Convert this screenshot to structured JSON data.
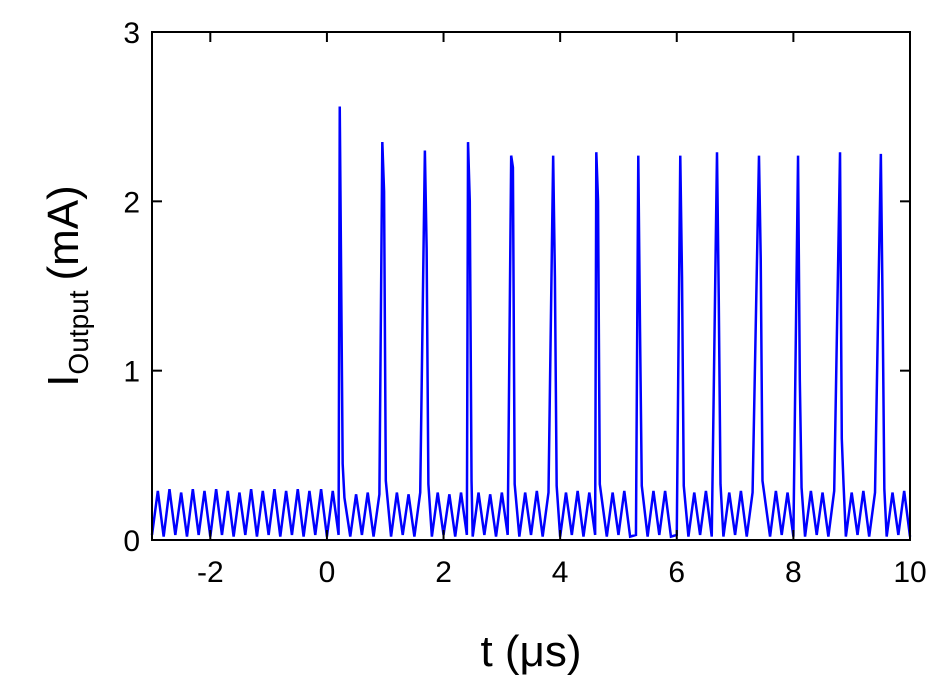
{
  "chart_data": {
    "type": "line",
    "x_label": "t (μs)",
    "y_label": {
      "main": "I",
      "sub": "Output",
      "unit": "(mA)"
    },
    "color": "#0000ff",
    "xlim": [
      -3,
      10
    ],
    "xticks": [
      -2,
      0,
      2,
      4,
      6,
      8,
      10
    ],
    "ylim": [
      0,
      3
    ],
    "yticks": [
      0,
      1,
      2,
      3
    ],
    "x": [
      -3,
      -2.9,
      -2.8,
      -2.7,
      -2.6,
      -2.5,
      -2.4,
      -2.3,
      -2.2,
      -2.1,
      -2,
      -1.9,
      -1.8,
      -1.7,
      -1.6,
      -1.5,
      -1.4,
      -1.3,
      -1.2,
      -1.1,
      -1,
      -0.9,
      -0.8,
      -0.7,
      -0.6,
      -0.5,
      -0.4,
      -0.3,
      -0.2,
      -0.1,
      0,
      0.1,
      0.2,
      0.22,
      0.24,
      0.27,
      0.3,
      0.4,
      0.5,
      0.6,
      0.7,
      0.8,
      0.9,
      0.95,
      0.98,
      1.01,
      1.1,
      1.2,
      1.3,
      1.4,
      1.5,
      1.6,
      1.68,
      1.71,
      1.74,
      1.8,
      1.9,
      2,
      2.1,
      2.2,
      2.3,
      2.4,
      2.42,
      2.45,
      2.48,
      2.5,
      2.6,
      2.7,
      2.8,
      2.9,
      3,
      3.1,
      3.16,
      3.19,
      3.22,
      3.3,
      3.4,
      3.5,
      3.6,
      3.7,
      3.8,
      3.88,
      3.91,
      3.94,
      4,
      4.1,
      4.2,
      4.3,
      4.4,
      4.5,
      4.6,
      4.62,
      4.65,
      4.68,
      4.8,
      4.9,
      5,
      5.1,
      5.2,
      5.3,
      5.34,
      5.37,
      5.4,
      5.5,
      5.6,
      5.7,
      5.8,
      5.9,
      6,
      6.06,
      6.09,
      6.12,
      6.2,
      6.3,
      6.4,
      6.5,
      6.6,
      6.69,
      6.72,
      6.75,
      6.8,
      6.9,
      7,
      7.1,
      7.2,
      7.3,
      7.41,
      7.44,
      7.47,
      7.6,
      7.7,
      7.8,
      7.9,
      8,
      8.08,
      8.11,
      8.14,
      8.2,
      8.3,
      8.4,
      8.5,
      8.6,
      8.7,
      8.8,
      8.83,
      8.86,
      8.9,
      9,
      9.1,
      9.2,
      9.3,
      9.4,
      9.5,
      9.53,
      9.56,
      9.6,
      9.7,
      9.8,
      9.9,
      10
    ],
    "values": [
      0.03,
      0.29,
      0.02,
      0.3,
      0.03,
      0.28,
      0.02,
      0.3,
      0.03,
      0.29,
      0.02,
      0.3,
      0.03,
      0.29,
      0.02,
      0.28,
      0.03,
      0.3,
      0.02,
      0.29,
      0.03,
      0.3,
      0.02,
      0.29,
      0.03,
      0.3,
      0.02,
      0.29,
      0.03,
      0.3,
      0.02,
      0.29,
      0.03,
      2.56,
      1.72,
      0.45,
      0.25,
      0.02,
      0.27,
      0.03,
      0.28,
      0.02,
      0.27,
      2.35,
      2.06,
      0.35,
      0.02,
      0.28,
      0.03,
      0.27,
      0.02,
      0.28,
      2.3,
      1.72,
      0.33,
      0.02,
      0.28,
      0.03,
      0.27,
      0.02,
      0.28,
      0.03,
      2.35,
      2.0,
      0.35,
      0.02,
      0.28,
      0.03,
      0.27,
      0.02,
      0.28,
      0.03,
      2.27,
      2.2,
      0.33,
      0.02,
      0.28,
      0.03,
      0.29,
      0.02,
      0.28,
      2.27,
      1.55,
      0.32,
      0.02,
      0.28,
      0.03,
      0.29,
      0.02,
      0.28,
      0.03,
      2.29,
      2.0,
      0.33,
      0.02,
      0.28,
      0.03,
      0.29,
      0.02,
      0.03,
      2.27,
      1.23,
      0.32,
      0.02,
      0.29,
      0.03,
      0.29,
      0.02,
      0.03,
      2.27,
      1.55,
      0.32,
      0.02,
      0.28,
      0.03,
      0.29,
      0.02,
      2.29,
      1.43,
      0.33,
      0.02,
      0.28,
      0.03,
      0.29,
      0.02,
      0.28,
      2.27,
      1.66,
      0.35,
      0.02,
      0.29,
      0.03,
      0.28,
      0.02,
      2.27,
      0.95,
      0.31,
      0.02,
      0.29,
      0.03,
      0.28,
      0.02,
      0.29,
      2.29,
      0.6,
      0.33,
      0.02,
      0.28,
      0.03,
      0.29,
      0.02,
      0.28,
      2.28,
      1.38,
      0.3,
      0.02,
      0.28,
      0.03,
      0.29,
      0.02
    ]
  }
}
